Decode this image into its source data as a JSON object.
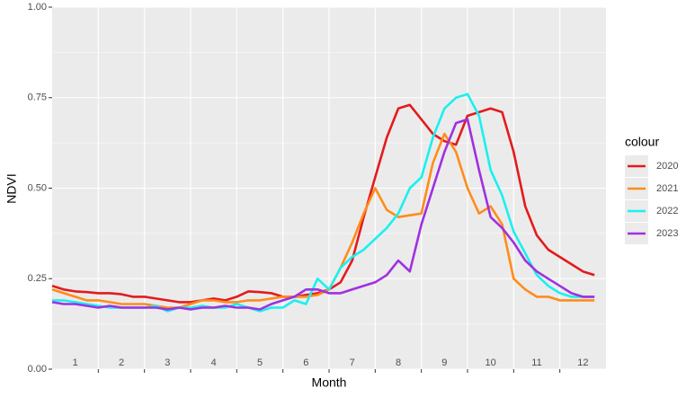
{
  "chart_data": {
    "type": "line",
    "x_label": "Month",
    "y_label": "NDVI",
    "legend_title": "colour",
    "legend_position": "right",
    "x": [
      1.0,
      1.25,
      1.5,
      1.75,
      2.0,
      2.25,
      2.5,
      2.75,
      3.0,
      3.25,
      3.5,
      3.75,
      4.0,
      4.25,
      4.5,
      4.75,
      5.0,
      5.25,
      5.5,
      5.75,
      6.0,
      6.25,
      6.5,
      6.75,
      7.0,
      7.25,
      7.5,
      7.75,
      8.0,
      8.25,
      8.5,
      8.75,
      9.0,
      9.25,
      9.5,
      9.75,
      10.0,
      10.25,
      10.5,
      10.75,
      11.0,
      11.25,
      11.5,
      11.75,
      12.0,
      12.25,
      12.5,
      12.75
    ],
    "series": [
      {
        "name": "2020",
        "color": "#e41a1c",
        "values": [
          0.23,
          0.22,
          0.215,
          0.213,
          0.21,
          0.21,
          0.207,
          0.2,
          0.2,
          0.195,
          0.19,
          0.185,
          0.185,
          0.19,
          0.195,
          0.19,
          0.2,
          0.215,
          0.213,
          0.21,
          0.2,
          0.2,
          0.205,
          0.21,
          0.22,
          0.24,
          0.3,
          0.42,
          0.53,
          0.64,
          0.72,
          0.73,
          0.69,
          0.65,
          0.63,
          0.62,
          0.7,
          0.71,
          0.72,
          0.71,
          0.6,
          0.45,
          0.37,
          0.33,
          0.31,
          0.29,
          0.27,
          0.26
        ]
      },
      {
        "name": "2021",
        "color": "#ff8c1a",
        "values": [
          0.22,
          0.21,
          0.2,
          0.19,
          0.19,
          0.185,
          0.18,
          0.18,
          0.18,
          0.175,
          0.17,
          0.17,
          0.18,
          0.19,
          0.19,
          0.185,
          0.185,
          0.19,
          0.19,
          0.195,
          0.2,
          0.2,
          0.2,
          0.205,
          0.22,
          0.28,
          0.35,
          0.43,
          0.5,
          0.44,
          0.42,
          0.425,
          0.43,
          0.57,
          0.65,
          0.6,
          0.5,
          0.43,
          0.45,
          0.4,
          0.25,
          0.22,
          0.2,
          0.2,
          0.19,
          0.19,
          0.19,
          0.19
        ]
      },
      {
        "name": "2022",
        "color": "#1af0f0",
        "values": [
          0.19,
          0.19,
          0.185,
          0.18,
          0.175,
          0.17,
          0.17,
          0.17,
          0.17,
          0.175,
          0.16,
          0.17,
          0.17,
          0.175,
          0.17,
          0.17,
          0.18,
          0.17,
          0.16,
          0.17,
          0.17,
          0.19,
          0.18,
          0.25,
          0.22,
          0.28,
          0.31,
          0.33,
          0.36,
          0.39,
          0.43,
          0.5,
          0.53,
          0.64,
          0.72,
          0.75,
          0.76,
          0.7,
          0.55,
          0.48,
          0.38,
          0.32,
          0.26,
          0.23,
          0.21,
          0.2,
          0.2,
          0.2
        ]
      },
      {
        "name": "2023",
        "color": "#a030e0",
        "values": [
          0.185,
          0.18,
          0.18,
          0.175,
          0.17,
          0.175,
          0.17,
          0.17,
          0.17,
          0.17,
          0.165,
          0.17,
          0.165,
          0.17,
          0.17,
          0.175,
          0.17,
          0.17,
          0.165,
          0.18,
          0.19,
          0.2,
          0.22,
          0.22,
          0.21,
          0.21,
          0.22,
          0.23,
          0.24,
          0.26,
          0.3,
          0.27,
          0.4,
          0.5,
          0.6,
          0.68,
          0.69,
          0.55,
          0.42,
          0.39,
          0.35,
          0.3,
          0.27,
          0.25,
          0.23,
          0.21,
          0.2,
          0.2
        ]
      }
    ],
    "xlim": [
      1,
      13
    ],
    "xticks": [
      {
        "value": 1.5,
        "label": "1"
      },
      {
        "value": 2.5,
        "label": "2"
      },
      {
        "value": 3.5,
        "label": "3"
      },
      {
        "value": 4.5,
        "label": "4"
      },
      {
        "value": 5.5,
        "label": "5"
      },
      {
        "value": 6.5,
        "label": "6"
      },
      {
        "value": 7.5,
        "label": "7"
      },
      {
        "value": 8.5,
        "label": "8"
      },
      {
        "value": 9.5,
        "label": "9"
      },
      {
        "value": 10.5,
        "label": "10"
      },
      {
        "value": 11.5,
        "label": "11"
      },
      {
        "value": 12.5,
        "label": "12"
      }
    ],
    "x_minor_ticks": [
      2,
      3,
      4,
      5,
      6,
      7,
      8,
      9,
      10,
      11,
      12
    ],
    "ylim": [
      0,
      1
    ],
    "yticks": [
      {
        "value": 0,
        "label": "0.00"
      },
      {
        "value": 0.25,
        "label": "0.25"
      },
      {
        "value": 0.5,
        "label": "0.50"
      },
      {
        "value": 0.75,
        "label": "0.75"
      },
      {
        "value": 1,
        "label": "1.00"
      }
    ],
    "y_minor_grid": [
      0.125,
      0.375,
      0.625,
      0.875
    ],
    "grid": true
  }
}
